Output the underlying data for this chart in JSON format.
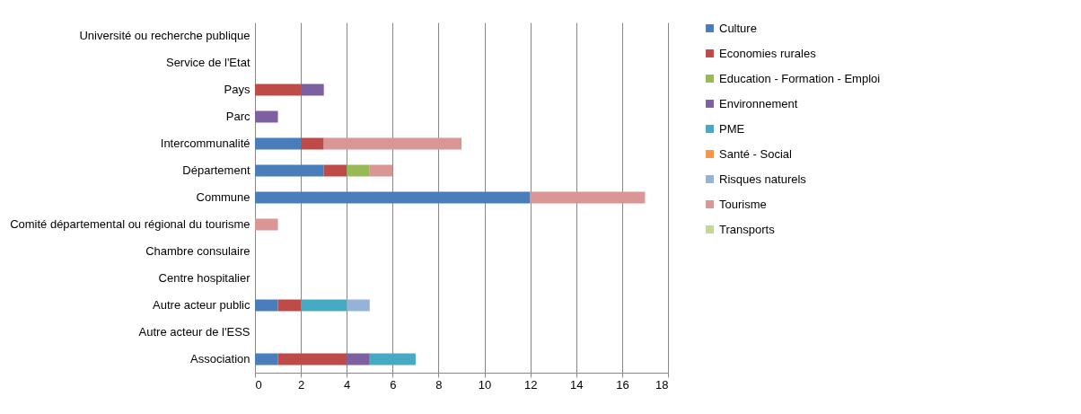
{
  "chart_data": {
    "type": "bar",
    "orientation": "horizontal",
    "stacked": true,
    "categories": [
      "Université ou recherche publique",
      "Service de l'Etat",
      "Pays",
      "Parc",
      "Intercommunalité",
      "Département",
      "Commune",
      "Comité départemental ou régional du tourisme",
      "Chambre consulaire",
      "Centre hospitalier",
      "Autre acteur public",
      "Autre acteur de l'ESS",
      "Association"
    ],
    "series": [
      {
        "name": "Culture",
        "color": "#4a7ebb",
        "values": [
          null,
          null,
          null,
          null,
          2,
          3,
          12,
          null,
          null,
          null,
          1,
          null,
          1
        ]
      },
      {
        "name": "Economies rurales",
        "color": "#be4b48",
        "values": [
          null,
          null,
          2,
          null,
          1,
          1,
          null,
          null,
          null,
          null,
          1,
          null,
          3
        ]
      },
      {
        "name": "Education - Formation - Emploi",
        "color": "#98b954",
        "values": [
          null,
          null,
          null,
          null,
          null,
          1,
          null,
          null,
          null,
          null,
          null,
          null,
          null
        ]
      },
      {
        "name": "Environnement",
        "color": "#7d60a0",
        "values": [
          null,
          null,
          1,
          1,
          null,
          null,
          null,
          null,
          null,
          null,
          null,
          null,
          1
        ]
      },
      {
        "name": "PME",
        "color": "#46aac5",
        "values": [
          null,
          null,
          null,
          null,
          null,
          null,
          null,
          null,
          null,
          null,
          2,
          null,
          2
        ]
      },
      {
        "name": "Santé - Social",
        "color": "#f79646",
        "values": [
          null,
          null,
          null,
          null,
          null,
          null,
          null,
          null,
          null,
          null,
          null,
          null,
          null
        ]
      },
      {
        "name": "Risques naturels",
        "color": "#95b3d7",
        "values": [
          null,
          null,
          null,
          null,
          null,
          null,
          null,
          null,
          null,
          null,
          1,
          null,
          null
        ]
      },
      {
        "name": "Tourisme",
        "color": "#d99694",
        "values": [
          null,
          null,
          null,
          null,
          6,
          1,
          5,
          1,
          null,
          null,
          null,
          null,
          null
        ]
      },
      {
        "name": "Transports",
        "color": "#c3d69b",
        "values": [
          null,
          null,
          null,
          null,
          null,
          null,
          null,
          null,
          null,
          null,
          null,
          null,
          null
        ]
      }
    ],
    "xlim": [
      0,
      18
    ],
    "xticks": [
      0,
      2,
      4,
      6,
      8,
      10,
      12,
      14,
      16,
      18
    ],
    "grid": "x",
    "legend": "right"
  }
}
